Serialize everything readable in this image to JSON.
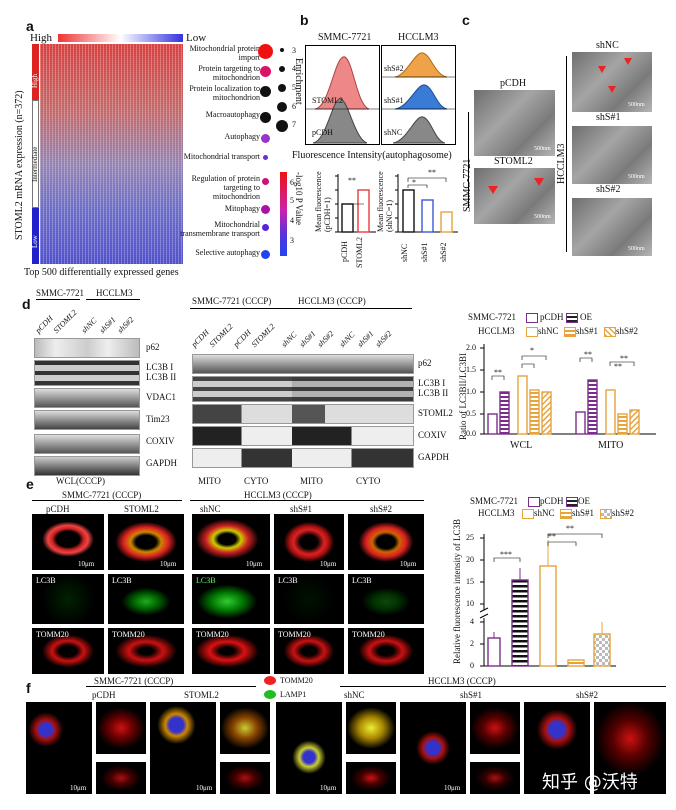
{
  "panels": {
    "a": "a",
    "b": "b",
    "c": "c",
    "d": "d",
    "e": "e",
    "f": "f"
  },
  "panel_a": {
    "scale_high": "High",
    "scale_low": "Low",
    "ylabel": "STOML2 mRNA expression (n=372)",
    "groups": [
      "High",
      "Intermediate",
      "Low"
    ],
    "xlabel": "Top 500 differentially expressed genes",
    "terms": [
      "Mitochondrial protein import",
      "Protein targeting to mitochondrion",
      "Protein localization to mitochondrion",
      "Macroautophagy",
      "Autophagy",
      "Mitochondrial transport",
      "Regulation of protein targeting to mitochondrion",
      "Mitophagy",
      "Mitochondrial transmembrane transport",
      "Selective autophagy"
    ],
    "term_colors": [
      "#ee1111",
      "#dd1166",
      "#111111",
      "#111111",
      "#9933cc",
      "#6633cc",
      "#cc1177",
      "#aa11aa",
      "#5522dd",
      "#2244ee"
    ],
    "term_sizes": [
      7,
      6,
      5,
      5,
      4,
      2,
      3,
      4,
      3,
      3
    ],
    "enrich_title": "Enrichment",
    "enrich_vals": [
      "3",
      "4",
      "5",
      "6",
      "7"
    ],
    "pval_title": "-log10 P Value",
    "pval_ticks": [
      "6",
      "5",
      "4",
      "3"
    ]
  },
  "panel_b": {
    "left_title": "SMMC-7721",
    "right_title": "HCCLM3",
    "left_labels": [
      "STOML2",
      "pCDH"
    ],
    "right_labels": [
      "shS#2",
      "shS#1",
      "shNC"
    ],
    "hist_xlabel": "Fluorescence Intensity(autophagosome)",
    "bar1": {
      "ylabel": "Mean fluorescence (pCDH=1)",
      "ticks": [
        "1.4",
        "1.2",
        "1.0",
        "0.8",
        "0.6"
      ],
      "cats": [
        "pCDH",
        "STOML2"
      ],
      "sig": "**"
    },
    "bar2": {
      "ylabel": "Mean fluorescence (shNC=1)",
      "ticks": [
        "1.2",
        "1.0",
        "0.8",
        "0.6",
        "0.4"
      ],
      "cats": [
        "shNC",
        "shS#1",
        "shS#2"
      ],
      "sig": [
        "*",
        "**"
      ]
    }
  },
  "panel_c": {
    "labels": [
      "pCDH",
      "STOML2",
      "shNC",
      "shS#1",
      "shS#2"
    ],
    "side_left": "SMMC-7721",
    "side_right": "HCCLM3",
    "scales": [
      "500nm",
      "500nm",
      "500nm",
      "500nm",
      "500nm"
    ]
  },
  "panel_d": {
    "left_titles": [
      "SMMC-7721",
      "HCCLM3"
    ],
    "left_lanes": [
      "pCDH",
      "STOML2",
      "shNC",
      "shS#1",
      "shS#2"
    ],
    "left_proteins": [
      "p62",
      "LC3B I",
      "LC3B II",
      "VDAC1",
      "Tim23",
      "COXIV",
      "GAPDH"
    ],
    "left_foot": "WCL(CCCP)",
    "mid_titles": [
      "SMMC-7721 (CCCP)",
      "HCCLM3 (CCCP)"
    ],
    "mid_lanes": [
      "pCDH",
      "STOML2",
      "pCDH",
      "STOML2",
      "shNC",
      "shS#1",
      "shS#2",
      "shNC",
      "shS#1",
      "shS#2"
    ],
    "mid_proteins": [
      "p62",
      "LC3B I",
      "LC3B II",
      "STOML2",
      "COXIV",
      "GAPDH"
    ],
    "mid_foot": [
      "MITO",
      "CYTO",
      "MITO",
      "CYTO"
    ],
    "legend": [
      "SMMC-7721",
      "pCDH",
      "OE",
      "HCCLM3",
      "shNC",
      "shS#1",
      "shS#2"
    ],
    "ylabel": "Ratio of LC3BII/LC3BI",
    "ticks": [
      "2.0",
      "1.5",
      "1.0",
      "0.5",
      "0.0"
    ],
    "groups": [
      "WCL",
      "MITO"
    ],
    "sig": [
      "**",
      "*",
      "**",
      "**",
      "**"
    ]
  },
  "panel_e": {
    "left_title": "SMMC-7721 (CCCP)",
    "right_title": "HCCLM3 (CCCP)",
    "cols": [
      "pCDH",
      "STOML2",
      "shNC",
      "shS#1",
      "shS#2"
    ],
    "rows": [
      "LC3B",
      "TOMM20"
    ],
    "scale": "10μm",
    "legend": [
      "SMMC-7721",
      "pCDH",
      "OE",
      "HCCLM3",
      "shNC",
      "shS#1",
      "shS#2"
    ],
    "ylabel": "Relative fluorescence intensity of LC3B",
    "ticks_top": [
      "25",
      "20",
      "15",
      "10"
    ],
    "ticks_bot": [
      "4",
      "2",
      "0"
    ],
    "sig": [
      "***",
      "**",
      "**"
    ]
  },
  "panel_f": {
    "left_title": "SMMC-7721 (CCCP)",
    "right_title": "HCCLM3 (CCCP)",
    "cols": [
      "pCDH",
      "STOML2",
      "shNC",
      "shS#1",
      "shS#2"
    ],
    "legend": [
      "TOMM20",
      "LAMP1"
    ],
    "scale": "10μm",
    "watermark": "知乎 @沃特"
  },
  "colors": {
    "red": "#e63b3b",
    "orange": "#e8a33c",
    "purple": "#7a2d8a",
    "black": "#111111",
    "blue": "#3a57d6",
    "gray": "#8a8a8a"
  }
}
